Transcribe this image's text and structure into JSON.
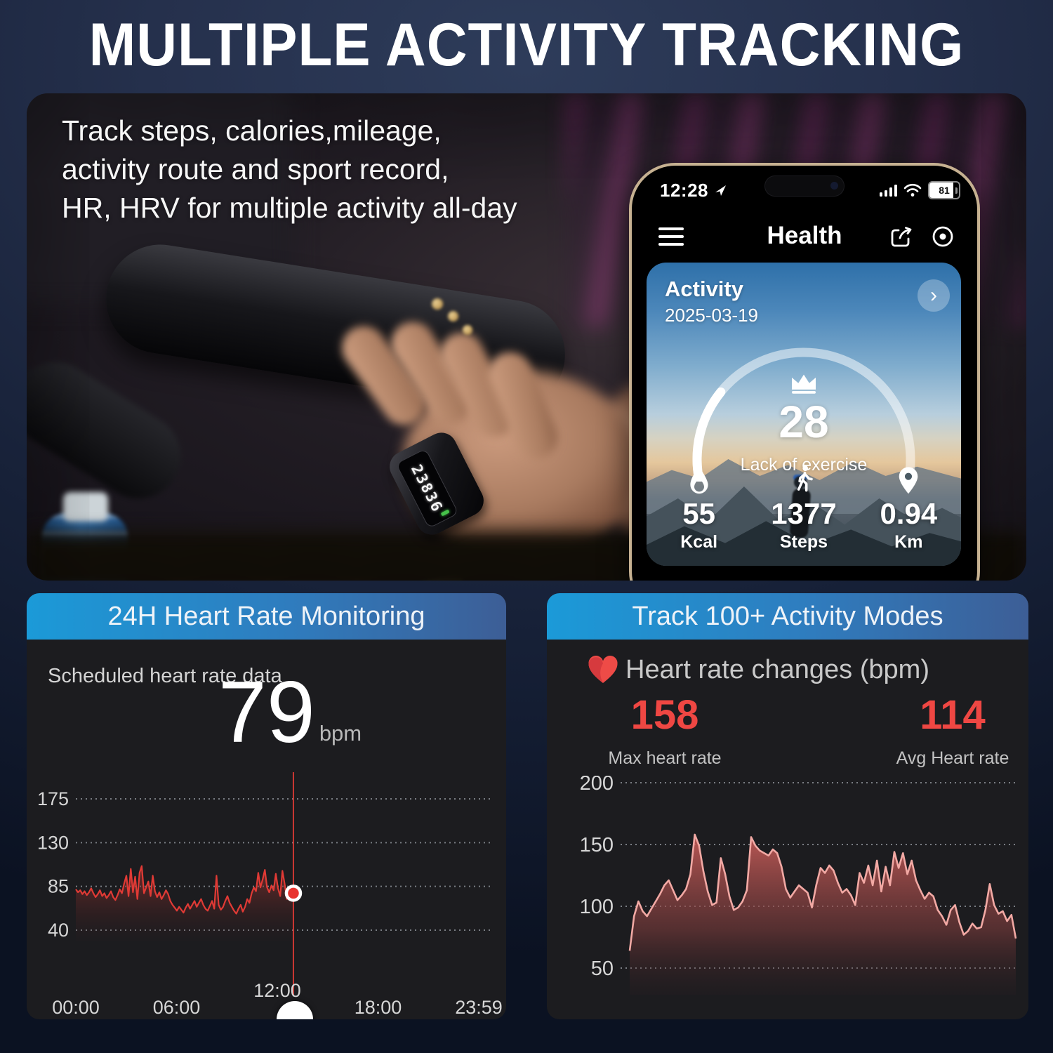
{
  "title": "MULTIPLE ACTIVITY TRACKING",
  "photo": {
    "overlay_lines": [
      "Track steps, calories,mileage,",
      "activity route and sport record,",
      "HR, HRV  for multiple activity all-day"
    ],
    "ring_display": "23836"
  },
  "phone": {
    "status_bar": {
      "time": "12:28",
      "battery": "81"
    },
    "header": {
      "title": "Health"
    },
    "activity_card": {
      "title": "Activity",
      "date": "2025-03-19",
      "score": "28",
      "score_max": 100,
      "score_label": "Lack of exercise",
      "chevron": "›",
      "stats": [
        {
          "icon": "flame-icon",
          "value": "55",
          "label": "Kcal"
        },
        {
          "icon": "walker-icon",
          "value": "1377",
          "label": "Steps"
        },
        {
          "icon": "location-pin-icon",
          "value": "0.94",
          "label": "Km"
        }
      ]
    }
  },
  "left_panel": {
    "header": "24H Heart Rate Monitoring",
    "subtitle": "Scheduled heart rate data",
    "current_value": "79",
    "current_unit": "bpm"
  },
  "right_panel": {
    "header": "Track 100+ Activity Modes",
    "heading": "Heart rate changes (bpm)",
    "max": {
      "value": "158",
      "label": "Max heart rate"
    },
    "avg": {
      "value": "114",
      "label": "Avg Heart rate"
    }
  },
  "colors": {
    "header_gradient_start": "#1b9ad8",
    "header_gradient_end": "#3d5e96",
    "panel_bg": "#1c1c1f",
    "accent_red": "#ef4743",
    "hr_line_red": "#e03a35",
    "area_line_pink": "#f2a9a4",
    "grid_dot": "#8b9096",
    "page_bg": "#1d2740"
  },
  "chart_data": [
    {
      "id": "scheduled-heart-rate",
      "type": "line",
      "title": "Scheduled heart rate data",
      "ylabel": "bpm",
      "yticks": [
        40,
        85,
        130,
        175
      ],
      "ylim": [
        30,
        190
      ],
      "xticklabels": [
        "00:00",
        "06:00",
        "12:00",
        "18:00",
        "23:59"
      ],
      "grid": "dotted",
      "cursor_value": 78,
      "x_end_fraction": 0.54,
      "values": [
        82,
        79,
        81,
        77,
        80,
        76,
        79,
        83,
        78,
        74,
        77,
        81,
        75,
        78,
        73,
        76,
        80,
        74,
        71,
        76,
        82,
        78,
        88,
        96,
        75,
        103,
        79,
        95,
        72,
        99,
        106,
        78,
        84,
        90,
        75,
        96,
        80,
        74,
        79,
        72,
        76,
        81,
        77,
        70,
        66,
        63,
        60,
        64,
        61,
        58,
        63,
        67,
        62,
        66,
        70,
        64,
        68,
        72,
        66,
        62,
        60,
        65,
        70,
        62,
        96,
        66,
        61,
        64,
        70,
        75,
        68,
        64,
        60,
        57,
        62,
        66,
        59,
        64,
        72,
        68,
        78,
        84,
        80,
        99,
        84,
        92,
        102,
        84,
        79,
        86,
        81,
        98,
        83,
        75,
        101,
        88,
        72,
        80,
        84,
        78
      ]
    },
    {
      "id": "heart-rate-changes",
      "type": "area",
      "title": "Heart rate changes (bpm)",
      "max_heart_rate": 158,
      "avg_heart_rate": 114,
      "yticks": [
        50,
        100,
        150,
        200
      ],
      "ylim": [
        40,
        210
      ],
      "grid": "dotted",
      "values": [
        64,
        92,
        104,
        96,
        92,
        98,
        104,
        110,
        117,
        121,
        113,
        105,
        109,
        114,
        126,
        158,
        149,
        128,
        112,
        101,
        103,
        139,
        126,
        108,
        97,
        99,
        104,
        113,
        156,
        149,
        145,
        143,
        141,
        146,
        143,
        132,
        114,
        107,
        112,
        117,
        114,
        111,
        99,
        117,
        131,
        127,
        133,
        129,
        119,
        111,
        114,
        109,
        101,
        127,
        119,
        133,
        117,
        137,
        112,
        132,
        117,
        144,
        131,
        143,
        126,
        137,
        121,
        113,
        106,
        111,
        108,
        97,
        92,
        85,
        97,
        101,
        87,
        77,
        80,
        86,
        82,
        83,
        97,
        118,
        101,
        94,
        96,
        88,
        93,
        74
      ]
    }
  ]
}
